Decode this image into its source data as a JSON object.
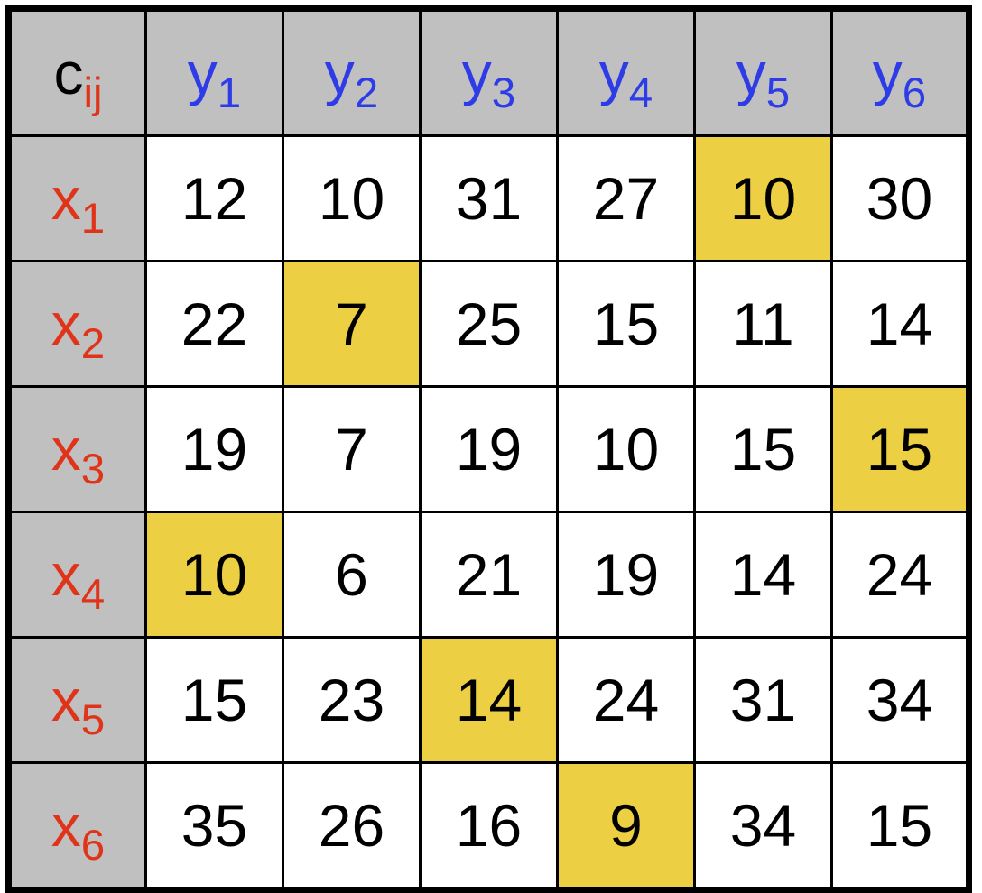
{
  "colors": {
    "header_bg": "#c0c0c0",
    "cell_bg": "#ffffff",
    "highlight_bg": "#eccf43",
    "row_label": "#e0341a",
    "col_label": "#2d3ce6",
    "text": "#000000"
  },
  "chart_data": {
    "type": "table",
    "corner": {
      "main": "c",
      "sub": "ij"
    },
    "columns": [
      {
        "main": "y",
        "sub": "1"
      },
      {
        "main": "y",
        "sub": "2"
      },
      {
        "main": "y",
        "sub": "3"
      },
      {
        "main": "y",
        "sub": "4"
      },
      {
        "main": "y",
        "sub": "5"
      },
      {
        "main": "y",
        "sub": "6"
      }
    ],
    "rows": [
      {
        "main": "x",
        "sub": "1"
      },
      {
        "main": "x",
        "sub": "2"
      },
      {
        "main": "x",
        "sub": "3"
      },
      {
        "main": "x",
        "sub": "4"
      },
      {
        "main": "x",
        "sub": "5"
      },
      {
        "main": "x",
        "sub": "6"
      }
    ],
    "values": [
      [
        12,
        10,
        31,
        27,
        10,
        30
      ],
      [
        22,
        7,
        25,
        15,
        11,
        14
      ],
      [
        19,
        7,
        19,
        10,
        15,
        15
      ],
      [
        10,
        6,
        21,
        19,
        14,
        24
      ],
      [
        15,
        23,
        14,
        24,
        31,
        34
      ],
      [
        35,
        26,
        16,
        9,
        34,
        15
      ]
    ],
    "highlighted": [
      [
        0,
        4
      ],
      [
        1,
        1
      ],
      [
        2,
        5
      ],
      [
        3,
        0
      ],
      [
        4,
        2
      ],
      [
        5,
        3
      ]
    ]
  }
}
